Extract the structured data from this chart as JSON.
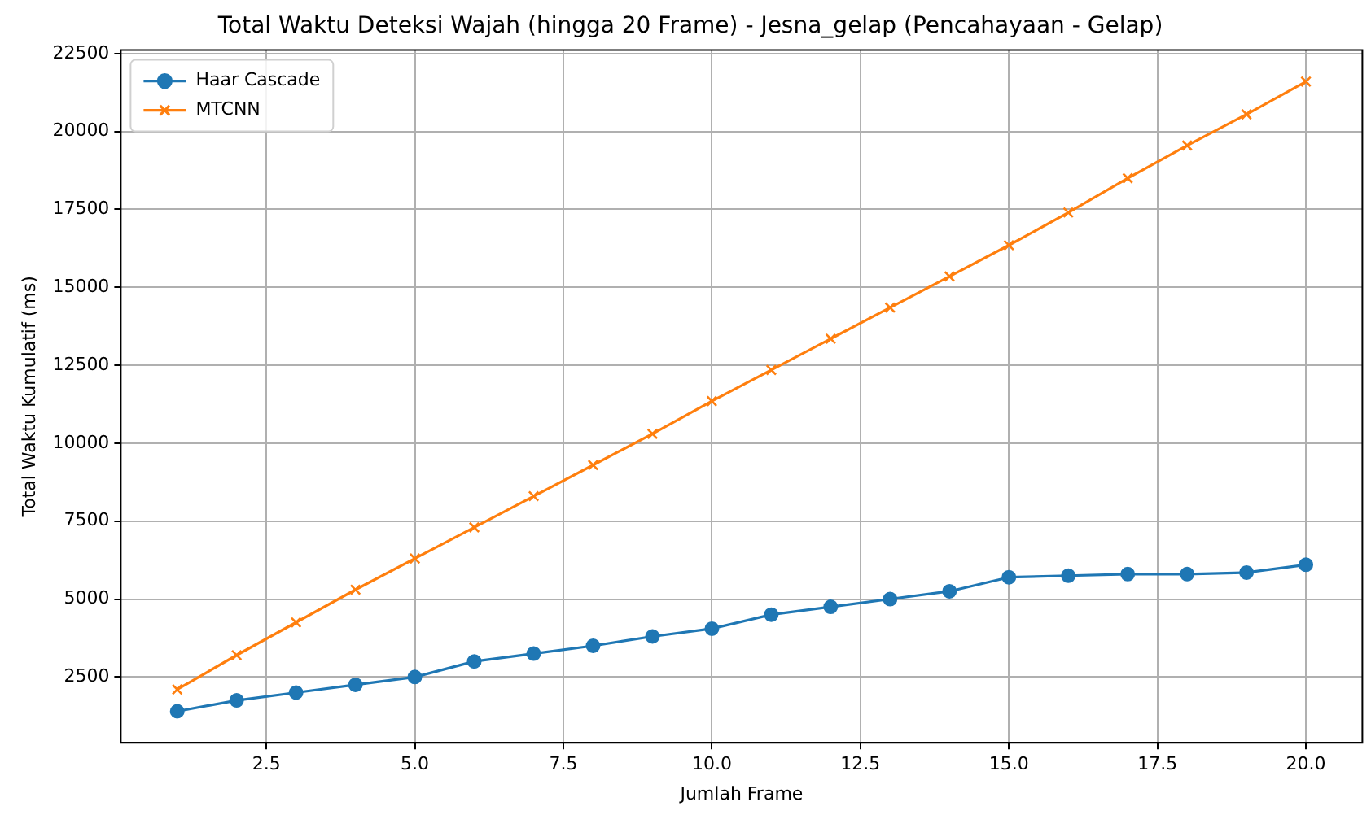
{
  "chart_data": {
    "type": "line",
    "title": "Total Waktu Deteksi Wajah (hingga 20 Frame) - Jesna_gelap (Pencahayaan - Gelap)",
    "xlabel": "Jumlah Frame",
    "ylabel": "Total Waktu Kumulatif (ms)",
    "x": [
      1,
      2,
      3,
      4,
      5,
      6,
      7,
      8,
      9,
      10,
      11,
      12,
      13,
      14,
      15,
      16,
      17,
      18,
      19,
      20
    ],
    "series": [
      {
        "name": "Haar Cascade",
        "color": "#1f77b4",
        "marker": "circle",
        "values": [
          1400,
          1750,
          2000,
          2250,
          2500,
          3000,
          3250,
          3500,
          3800,
          4050,
          4500,
          4750,
          5000,
          5250,
          5700,
          5750,
          5800,
          5800,
          5850,
          6100
        ]
      },
      {
        "name": "MTCNN",
        "color": "#ff7f0e",
        "marker": "cross",
        "values": [
          2100,
          3200,
          4250,
          5300,
          6300,
          7300,
          8300,
          9300,
          10300,
          11350,
          12350,
          13350,
          14350,
          15350,
          16350,
          17400,
          18500,
          19550,
          20550,
          21600
        ]
      }
    ],
    "xlim": [
      0.05,
      20.95
    ],
    "xticks": [
      {
        "value": 2.5,
        "label": "2.5"
      },
      {
        "value": 5,
        "label": "5.0"
      },
      {
        "value": 7.5,
        "label": "7.5"
      },
      {
        "value": 10,
        "label": "10.0"
      },
      {
        "value": 12.5,
        "label": "12.5"
      },
      {
        "value": 15,
        "label": "15.0"
      },
      {
        "value": 17.5,
        "label": "17.5"
      },
      {
        "value": 20,
        "label": "20.0"
      }
    ],
    "ylim": [
      390,
      22610
    ],
    "yticks": [
      2500,
      5000,
      7500,
      10000,
      12500,
      15000,
      17500,
      20000,
      22500
    ],
    "grid": true,
    "legend": "top left",
    "line_style": "solid"
  }
}
